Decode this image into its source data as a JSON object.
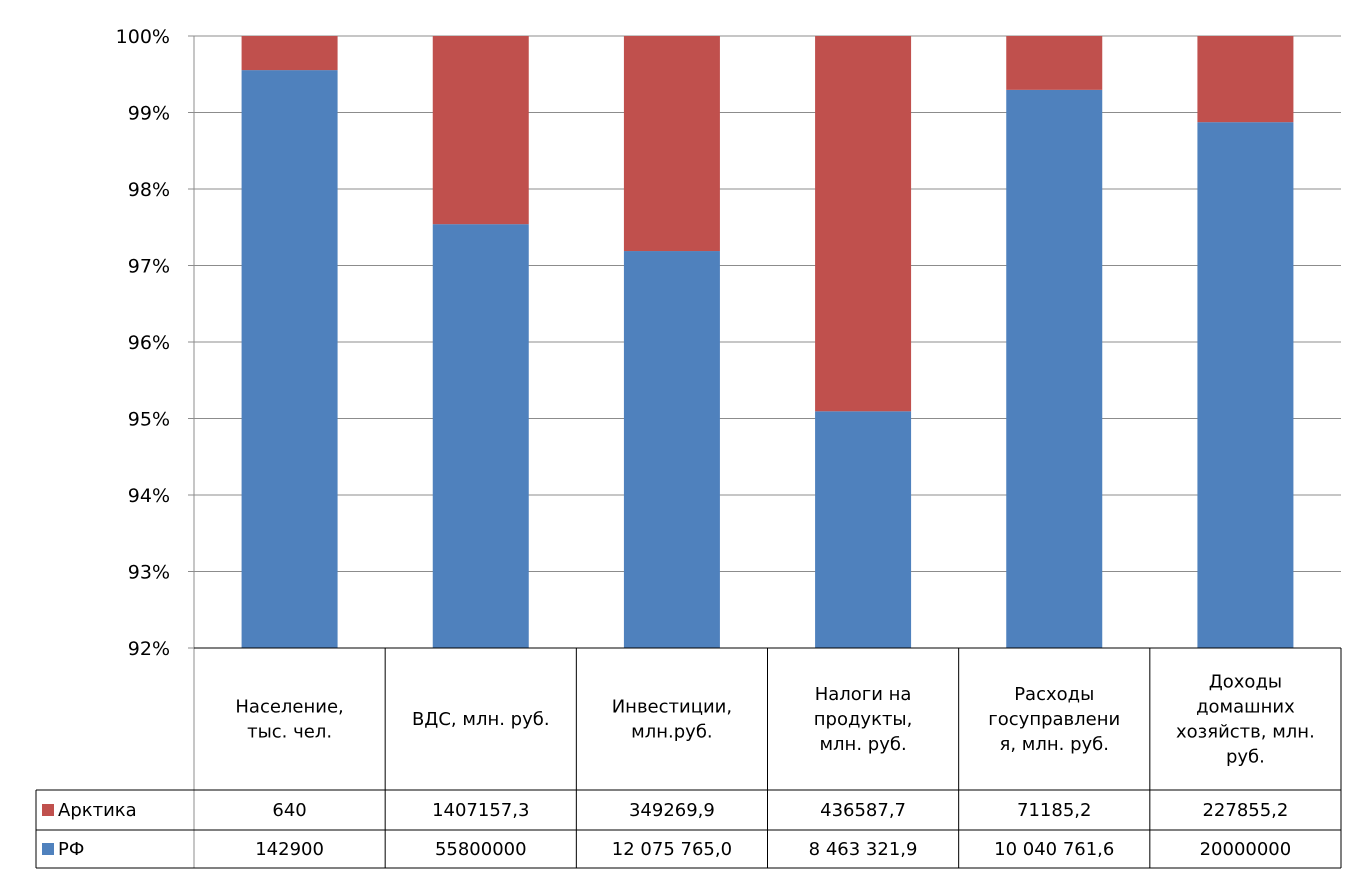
{
  "chart_data": {
    "type": "bar",
    "stacked": "percent",
    "categories": [
      [
        "Население,",
        "тыс. чел."
      ],
      [
        "ВДС, млн. руб."
      ],
      [
        "Инвестиции,",
        "млн.руб."
      ],
      [
        "Налоги на",
        "продукты,",
        "млн. руб."
      ],
      [
        "Расходы",
        "госуправлени",
        "я, млн. руб."
      ],
      [
        "Доходы",
        "домашних",
        "хозяйств, млн.",
        "руб."
      ]
    ],
    "y_ticks": [
      "92%",
      "93%",
      "94%",
      "95%",
      "96%",
      "97%",
      "98%",
      "99%",
      "100%"
    ],
    "ylim": [
      92,
      100
    ],
    "grid": true,
    "series": [
      {
        "name": "РФ",
        "color": "#4F81BD",
        "values": [
          142900,
          55800000,
          12075765.0,
          8463321.9,
          10040761.6,
          20000000
        ],
        "labels": [
          "142900",
          "55800000",
          "12 075 765,0",
          "8 463 321,9",
          "10 040 761,6",
          "20000000"
        ]
      },
      {
        "name": "Арктика",
        "color": "#C0504D",
        "values": [
          640,
          1407157.3,
          349269.9,
          436587.7,
          71185.2,
          227855.2
        ],
        "labels": [
          "640",
          "1407157,3",
          "349269,9",
          "436587,7",
          "71185,2",
          "227855,2"
        ]
      }
    ]
  }
}
